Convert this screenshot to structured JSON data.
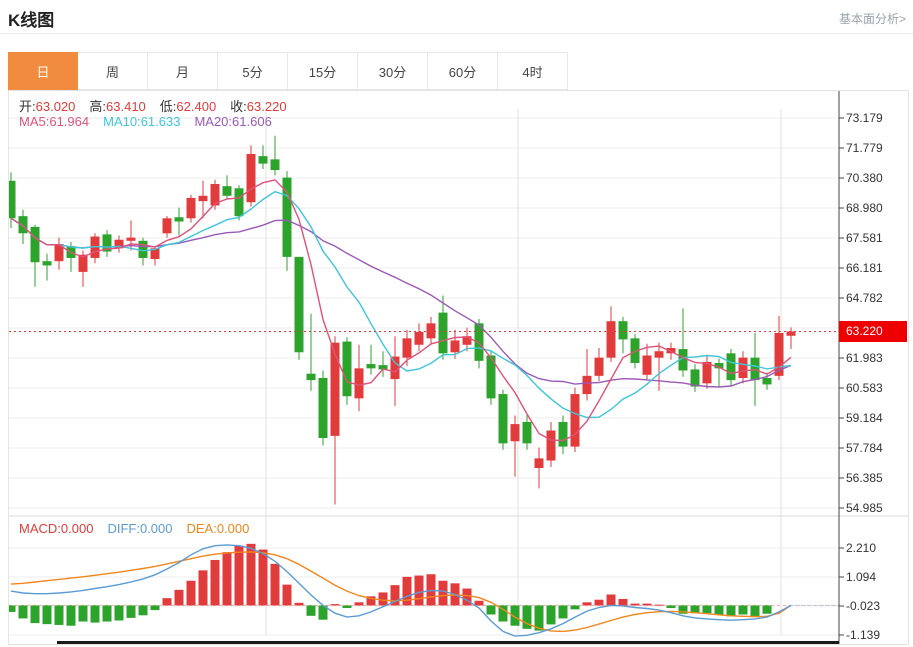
{
  "header": {
    "title": "K线图",
    "link_label": "基本面分析>"
  },
  "tabs": [
    {
      "id": "day",
      "label": "日",
      "active": true
    },
    {
      "id": "week",
      "label": "周",
      "active": false
    },
    {
      "id": "month",
      "label": "月",
      "active": false
    },
    {
      "id": "min5",
      "label": "5分",
      "active": false
    },
    {
      "id": "min15",
      "label": "15分",
      "active": false
    },
    {
      "id": "min30",
      "label": "30分",
      "active": false
    },
    {
      "id": "min60",
      "label": "60分",
      "active": false
    },
    {
      "id": "hour4",
      "label": "4时",
      "active": false
    }
  ],
  "ohlc_legend": [
    {
      "name": "open",
      "label": "开:",
      "value": "63.020"
    },
    {
      "name": "high",
      "label": "高:",
      "value": "63.410"
    },
    {
      "name": "low",
      "label": "低:",
      "value": "62.400"
    },
    {
      "name": "close",
      "label": "收:",
      "value": "63.220"
    }
  ],
  "ma_legend": [
    {
      "name": "ma5",
      "label": "MA5:",
      "value": "61.964",
      "color": "#e0527a"
    },
    {
      "name": "ma10",
      "label": "MA10:",
      "value": "61.633",
      "color": "#3ec6d8"
    },
    {
      "name": "ma20",
      "label": "MA20:",
      "value": "61.606",
      "color": "#9b59b6"
    }
  ],
  "macd_legend": [
    {
      "name": "macd",
      "label": "MACD:",
      "value": "0.000",
      "color": "#e23b3b"
    },
    {
      "name": "diff",
      "label": "DIFF:",
      "value": "0.000",
      "color": "#5b9bd5"
    },
    {
      "name": "dea",
      "label": "DEA:",
      "value": "0.000",
      "color": "#f0861c"
    }
  ],
  "price_marker": {
    "value": "63.220"
  },
  "y_axis_labels": [
    "73.179",
    "71.779",
    "70.380",
    "68.980",
    "67.581",
    "66.181",
    "64.782",
    "61.983",
    "60.583",
    "59.184",
    "57.784",
    "56.385",
    "54.985"
  ],
  "macd_axis_labels": [
    "2.210",
    "1.094",
    "-0.023",
    "-1.139"
  ],
  "colors": {
    "up": "#e23b3b",
    "down": "#2ca42c",
    "ma5": "#e0527a",
    "ma10": "#3ec6d8",
    "ma20": "#9b59b6",
    "diff": "#5b9bd5",
    "dea": "#f0861c",
    "price_line": "#e03a3a",
    "price_box": "#ee0000",
    "grid": "#ececec",
    "vgrid": "#e2e2e2",
    "axis": "#444",
    "tab_active": "#f08b40"
  },
  "chart_data": {
    "type": "candlestick",
    "title": "K线图 (日K)",
    "interval": "日",
    "last_price": 63.22,
    "y_axis_ticks": [
      73.179,
      71.779,
      70.38,
      68.98,
      67.581,
      66.181,
      64.782,
      61.983,
      60.583,
      59.184,
      57.784,
      56.385,
      54.985
    ],
    "y_tick_step": 1.3995,
    "grid": true,
    "legend_position": "top-left",
    "candles_ohlc": [
      [
        70.25,
        70.65,
        68.05,
        68.5
      ],
      [
        68.6,
        68.9,
        67.3,
        67.8
      ],
      [
        68.1,
        68.2,
        65.3,
        66.45
      ],
      [
        66.5,
        66.85,
        65.6,
        66.3
      ],
      [
        66.5,
        67.6,
        66.1,
        67.3
      ],
      [
        67.2,
        67.4,
        66.0,
        66.65
      ],
      [
        66.0,
        67.0,
        65.3,
        66.8
      ],
      [
        66.65,
        67.8,
        66.4,
        67.65
      ],
      [
        67.75,
        67.95,
        66.7,
        66.95
      ],
      [
        67.1,
        67.7,
        66.9,
        67.5
      ],
      [
        67.45,
        68.4,
        67.0,
        67.6
      ],
      [
        67.45,
        67.6,
        66.3,
        66.65
      ],
      [
        66.6,
        67.2,
        66.3,
        67.1
      ],
      [
        67.8,
        68.6,
        67.6,
        68.5
      ],
      [
        68.55,
        69.0,
        67.7,
        68.35
      ],
      [
        68.5,
        69.6,
        68.3,
        69.45
      ],
      [
        69.3,
        70.25,
        68.5,
        69.55
      ],
      [
        69.1,
        70.3,
        68.9,
        70.1
      ],
      [
        70.0,
        70.5,
        69.4,
        69.55
      ],
      [
        69.9,
        70.05,
        68.4,
        68.6
      ],
      [
        69.25,
        71.9,
        69.05,
        71.5
      ],
      [
        71.4,
        71.9,
        70.8,
        71.05
      ],
      [
        71.25,
        72.35,
        70.5,
        70.75
      ],
      [
        70.4,
        70.7,
        66.05,
        66.7
      ],
      [
        66.7,
        66.7,
        61.9,
        62.25
      ],
      [
        61.25,
        64.05,
        60.45,
        60.95
      ],
      [
        61.05,
        61.4,
        57.9,
        58.25
      ],
      [
        58.35,
        63.0,
        55.15,
        62.7
      ],
      [
        62.75,
        62.95,
        59.8,
        60.2
      ],
      [
        60.1,
        62.6,
        59.5,
        61.5
      ],
      [
        61.7,
        62.6,
        61.2,
        61.5
      ],
      [
        61.65,
        62.3,
        61.1,
        61.45
      ],
      [
        61.0,
        63.0,
        59.75,
        62.05
      ],
      [
        62.0,
        63.3,
        61.6,
        62.9
      ],
      [
        62.6,
        63.6,
        62.3,
        63.2
      ],
      [
        62.9,
        63.9,
        62.6,
        63.6
      ],
      [
        64.1,
        64.9,
        61.9,
        62.2
      ],
      [
        62.25,
        63.3,
        61.95,
        62.8
      ],
      [
        62.6,
        63.4,
        62.3,
        63.0
      ],
      [
        63.6,
        63.8,
        61.5,
        61.85
      ],
      [
        62.1,
        62.3,
        59.8,
        60.1
      ],
      [
        60.3,
        60.5,
        57.7,
        58.0
      ],
      [
        58.1,
        59.3,
        56.45,
        58.9
      ],
      [
        59.0,
        59.4,
        57.7,
        58.0
      ],
      [
        56.85,
        57.8,
        55.9,
        57.3
      ],
      [
        57.2,
        59.0,
        56.9,
        58.6
      ],
      [
        59.0,
        59.3,
        57.5,
        57.85
      ],
      [
        57.85,
        60.6,
        57.6,
        60.3
      ],
      [
        60.3,
        62.4,
        60.0,
        61.15
      ],
      [
        61.15,
        62.45,
        60.9,
        62.0
      ],
      [
        62.0,
        64.4,
        61.8,
        63.7
      ],
      [
        63.7,
        63.9,
        62.2,
        62.85
      ],
      [
        62.9,
        63.1,
        61.5,
        61.75
      ],
      [
        61.2,
        62.65,
        60.95,
        62.1
      ],
      [
        62.0,
        62.7,
        60.45,
        62.3
      ],
      [
        62.2,
        62.7,
        61.9,
        62.45
      ],
      [
        62.4,
        64.3,
        61.1,
        61.4
      ],
      [
        61.45,
        61.7,
        60.4,
        60.65
      ],
      [
        60.8,
        62.1,
        60.55,
        61.8
      ],
      [
        61.75,
        61.95,
        60.65,
        61.5
      ],
      [
        62.2,
        62.4,
        60.7,
        60.95
      ],
      [
        61.05,
        62.3,
        60.8,
        62.0
      ],
      [
        62.0,
        63.15,
        59.75,
        60.95
      ],
      [
        61.05,
        61.3,
        60.5,
        60.75
      ],
      [
        61.15,
        63.95,
        60.95,
        63.15
      ],
      [
        63.02,
        63.41,
        62.4,
        63.22
      ]
    ],
    "ma_periods": [
      5,
      10,
      20
    ],
    "macd": {
      "y_labels": [
        2.21,
        1.094,
        -0.023,
        -1.139
      ],
      "histogram": [
        -0.25,
        -0.5,
        -0.68,
        -0.72,
        -0.75,
        -0.78,
        -0.62,
        -0.66,
        -0.62,
        -0.58,
        -0.48,
        -0.38,
        -0.18,
        0.28,
        0.6,
        0.95,
        1.35,
        1.75,
        2.05,
        2.3,
        2.37,
        2.15,
        1.6,
        0.8,
        0.1,
        -0.4,
        -0.55,
        0.05,
        -0.1,
        0.12,
        0.35,
        0.5,
        0.78,
        1.1,
        1.15,
        1.2,
        0.95,
        0.85,
        0.65,
        0.18,
        -0.35,
        -0.62,
        -0.78,
        -0.9,
        -0.97,
        -0.73,
        -0.5,
        -0.15,
        0.12,
        0.22,
        0.42,
        0.25,
        0.07,
        0.07,
        0.03,
        -0.1,
        -0.32,
        -0.3,
        -0.3,
        -0.35,
        -0.42,
        -0.35,
        -0.45,
        -0.32,
        0.0,
        0.0
      ],
      "diff": [
        0.55,
        0.48,
        0.45,
        0.45,
        0.48,
        0.52,
        0.58,
        0.65,
        0.72,
        0.8,
        0.9,
        1.02,
        1.18,
        1.4,
        1.65,
        1.95,
        2.18,
        2.3,
        2.33,
        2.3,
        2.2,
        2.0,
        1.7,
        1.3,
        0.85,
        0.4,
        0.0,
        -0.3,
        -0.45,
        -0.4,
        -0.25,
        -0.05,
        0.15,
        0.35,
        0.5,
        0.58,
        0.55,
        0.42,
        0.2,
        -0.1,
        -0.6,
        -1.0,
        -1.18,
        -1.15,
        -1.05,
        -0.9,
        -0.7,
        -0.45,
        -0.22,
        -0.08,
        0.0,
        -0.02,
        -0.08,
        -0.12,
        -0.18,
        -0.28,
        -0.4,
        -0.48,
        -0.52,
        -0.55,
        -0.57,
        -0.55,
        -0.52,
        -0.45,
        -0.25,
        0.0
      ],
      "dea": [
        0.82,
        0.85,
        0.9,
        0.95,
        1.0,
        1.05,
        1.1,
        1.16,
        1.22,
        1.28,
        1.35,
        1.42,
        1.5,
        1.6,
        1.7,
        1.8,
        1.9,
        1.97,
        2.02,
        2.05,
        2.06,
        2.03,
        1.95,
        1.8,
        1.58,
        1.32,
        1.05,
        0.78,
        0.55,
        0.38,
        0.27,
        0.2,
        0.18,
        0.2,
        0.26,
        0.33,
        0.38,
        0.4,
        0.38,
        0.3,
        0.12,
        -0.15,
        -0.45,
        -0.7,
        -0.88,
        -0.98,
        -1.0,
        -0.95,
        -0.85,
        -0.72,
        -0.58,
        -0.45,
        -0.35,
        -0.28,
        -0.24,
        -0.23,
        -0.25,
        -0.28,
        -0.32,
        -0.36,
        -0.4,
        -0.42,
        -0.43,
        -0.42,
        -0.3,
        0.0
      ]
    }
  }
}
